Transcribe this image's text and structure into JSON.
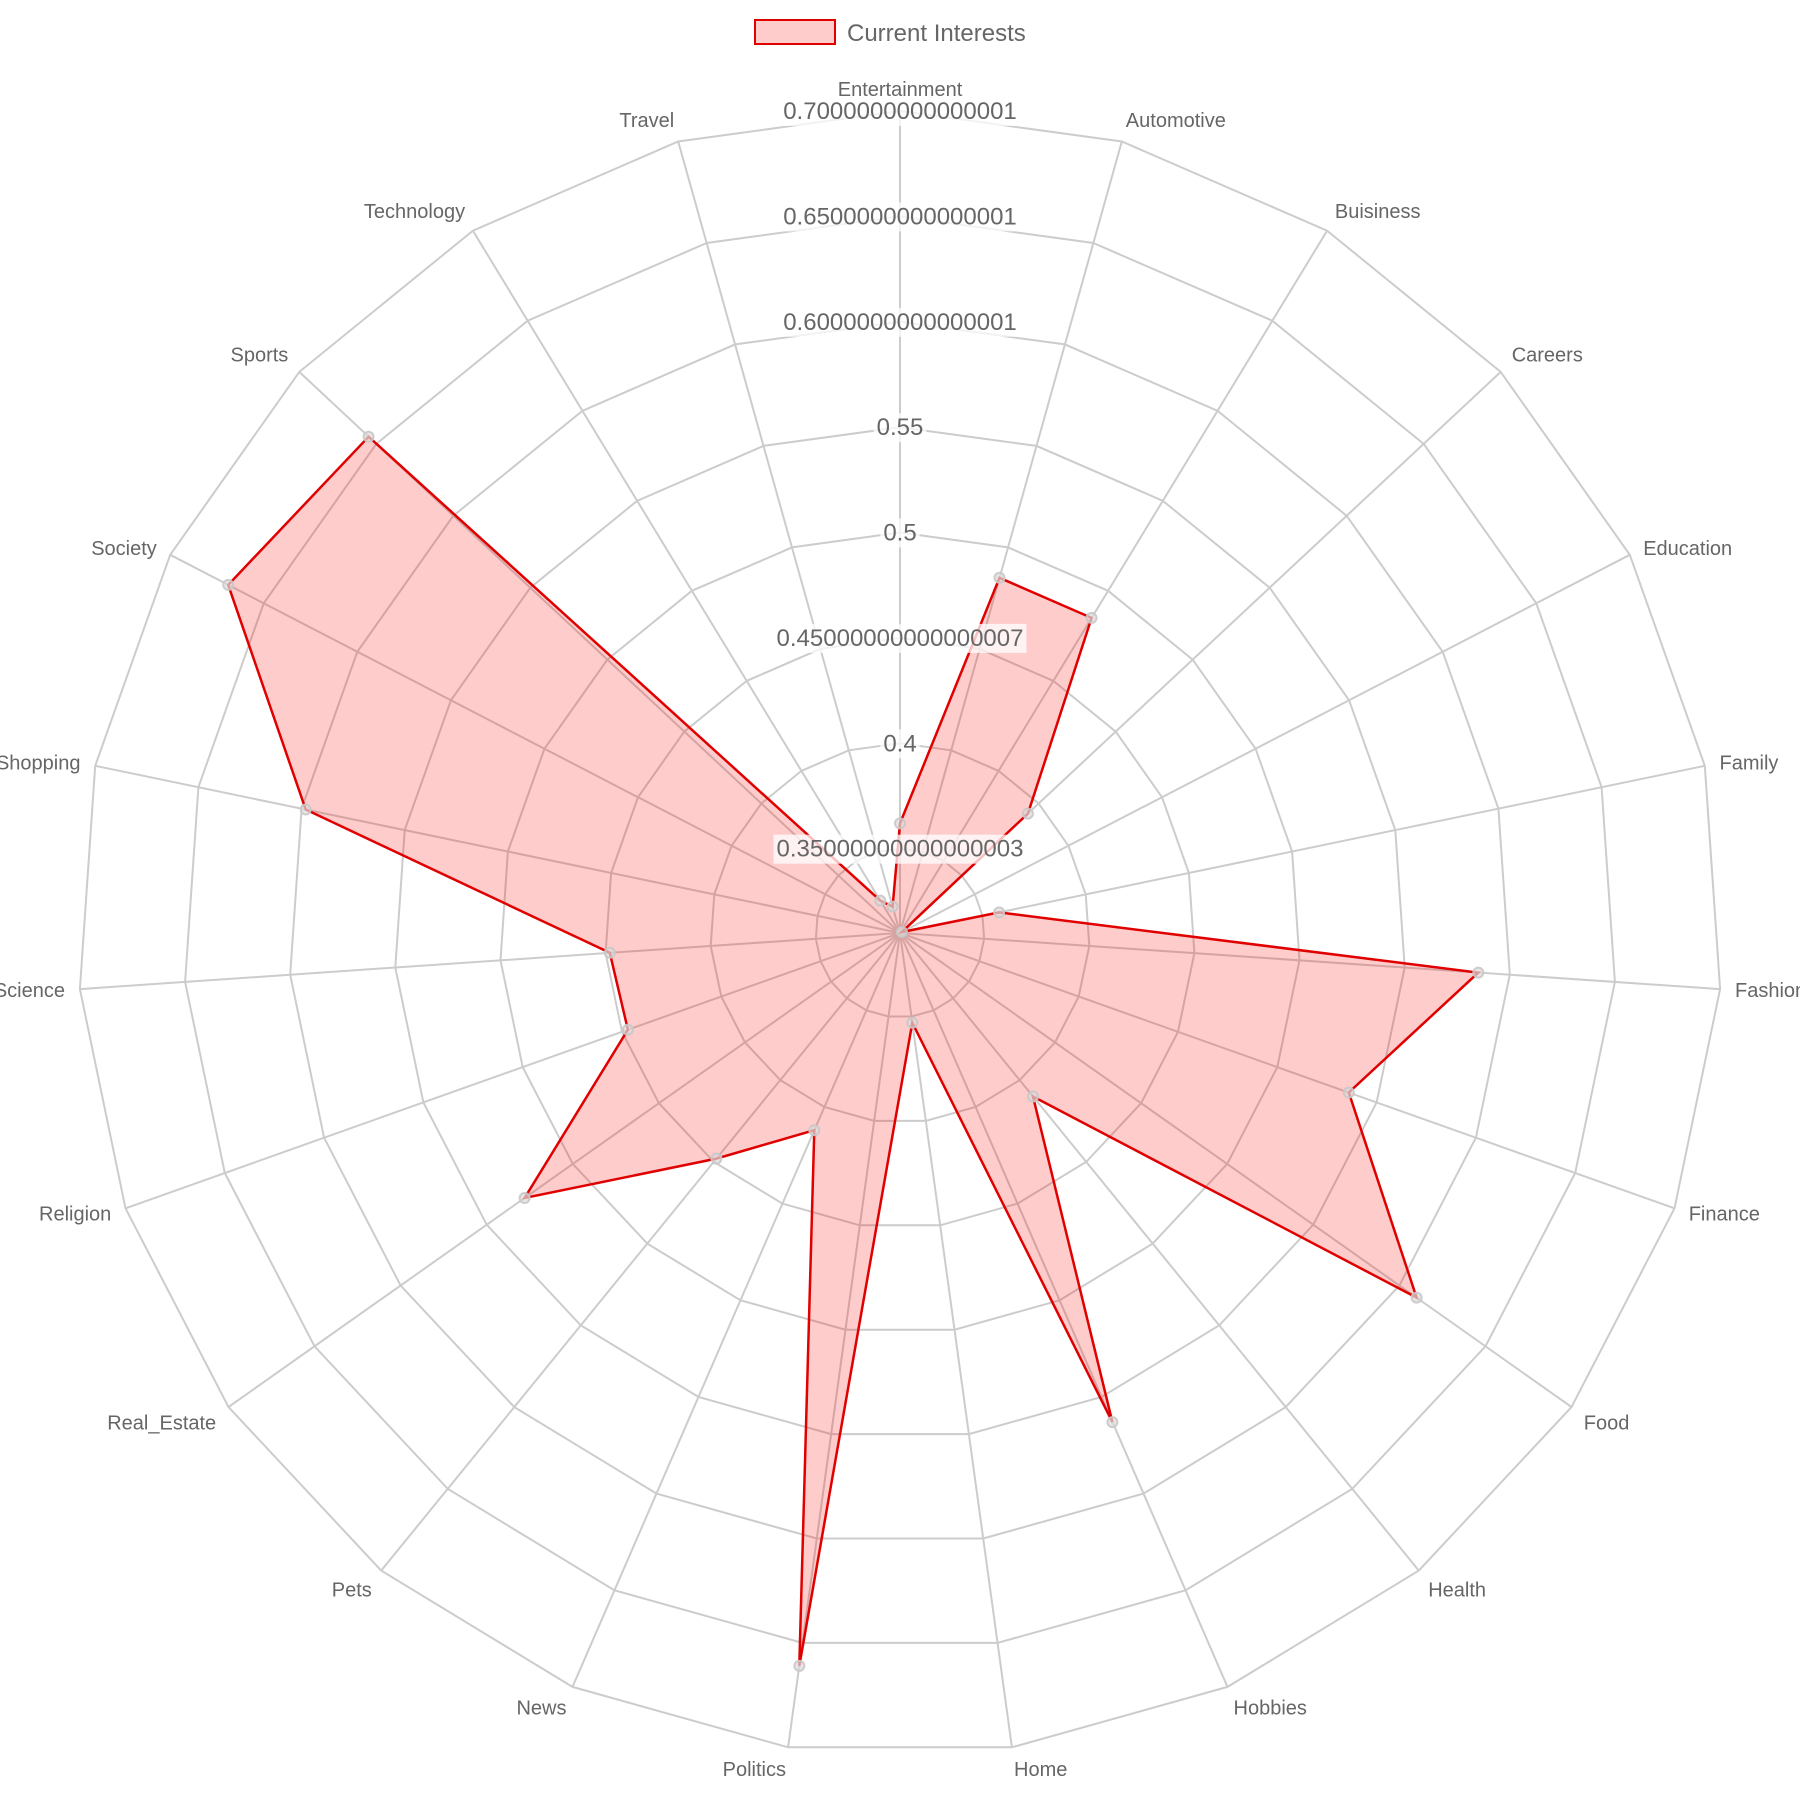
{
  "chart_data": {
    "type": "radar",
    "legend": {
      "position": "top",
      "series_label": "Current Interests"
    },
    "categories": [
      "Entertainment",
      "Automotive",
      "Buisiness",
      "Careers",
      "Education",
      "Family",
      "Fashion",
      "Finance",
      "Food",
      "Health",
      "Hobbies",
      "Home",
      "Politics",
      "News",
      "Pets",
      "Real_Estate",
      "Religion",
      "Science",
      "Shopping",
      "Society",
      "Sports",
      "Technology",
      "Travel"
    ],
    "r_ticks": [
      {
        "value": 0.35,
        "label": "0.35000000000000003"
      },
      {
        "value": 0.4,
        "label": "0.4"
      },
      {
        "value": 0.45,
        "label": "0.45000000000000007"
      },
      {
        "value": 0.5,
        "label": "0.5"
      },
      {
        "value": 0.55,
        "label": "0.55"
      },
      {
        "value": 0.6,
        "label": "0.6000000000000001"
      },
      {
        "value": 0.65,
        "label": "0.6500000000000001"
      },
      {
        "value": 0.7,
        "label": "0.7000000000000001"
      }
    ],
    "r_range": [
      0.31,
      0.7
    ],
    "series": [
      {
        "name": "Current Interests",
        "values": [
          0.362,
          0.485,
          0.485,
          0.393,
          0.311,
          0.358,
          0.585,
          0.536,
          0.61,
          0.41,
          0.563,
          0.353,
          0.661,
          0.412,
          0.448,
          0.528,
          0.447,
          0.448,
          0.598,
          0.669,
          0.655,
          0.328,
          0.323
        ],
        "border_color": "#e00000",
        "fill_color": "rgba(255,0,0,0.2)"
      }
    ],
    "grid": true
  }
}
